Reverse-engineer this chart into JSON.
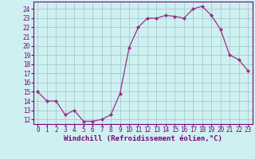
{
  "x": [
    0,
    1,
    2,
    3,
    4,
    5,
    6,
    7,
    8,
    9,
    10,
    11,
    12,
    13,
    14,
    15,
    16,
    17,
    18,
    19,
    20,
    21,
    22,
    23
  ],
  "y": [
    15.0,
    14.0,
    14.0,
    12.5,
    13.0,
    11.8,
    11.8,
    12.0,
    12.5,
    14.8,
    19.8,
    22.0,
    23.0,
    23.0,
    23.3,
    23.2,
    23.0,
    24.0,
    24.3,
    23.3,
    21.8,
    19.0,
    18.5,
    17.3
  ],
  "line_color": "#9b2d8e",
  "marker": "D",
  "marker_size": 2.0,
  "line_width": 0.9,
  "bg_color": "#cff0f0",
  "grid_color": "#a0cccc",
  "xlabel": "Windchill (Refroidissement éolien,°C)",
  "xlabel_fontsize": 6.5,
  "xlabel_color": "#7b007b",
  "ytick_labels": [
    "12",
    "13",
    "14",
    "15",
    "16",
    "17",
    "18",
    "19",
    "20",
    "21",
    "22",
    "23",
    "24"
  ],
  "ytick_vals": [
    12,
    13,
    14,
    15,
    16,
    17,
    18,
    19,
    20,
    21,
    22,
    23,
    24
  ],
  "xlim": [
    -0.5,
    23.5
  ],
  "ylim": [
    11.5,
    24.8
  ],
  "tick_fontsize": 5.5,
  "tick_color": "#7b007b",
  "spine_color": "#7b007b"
}
